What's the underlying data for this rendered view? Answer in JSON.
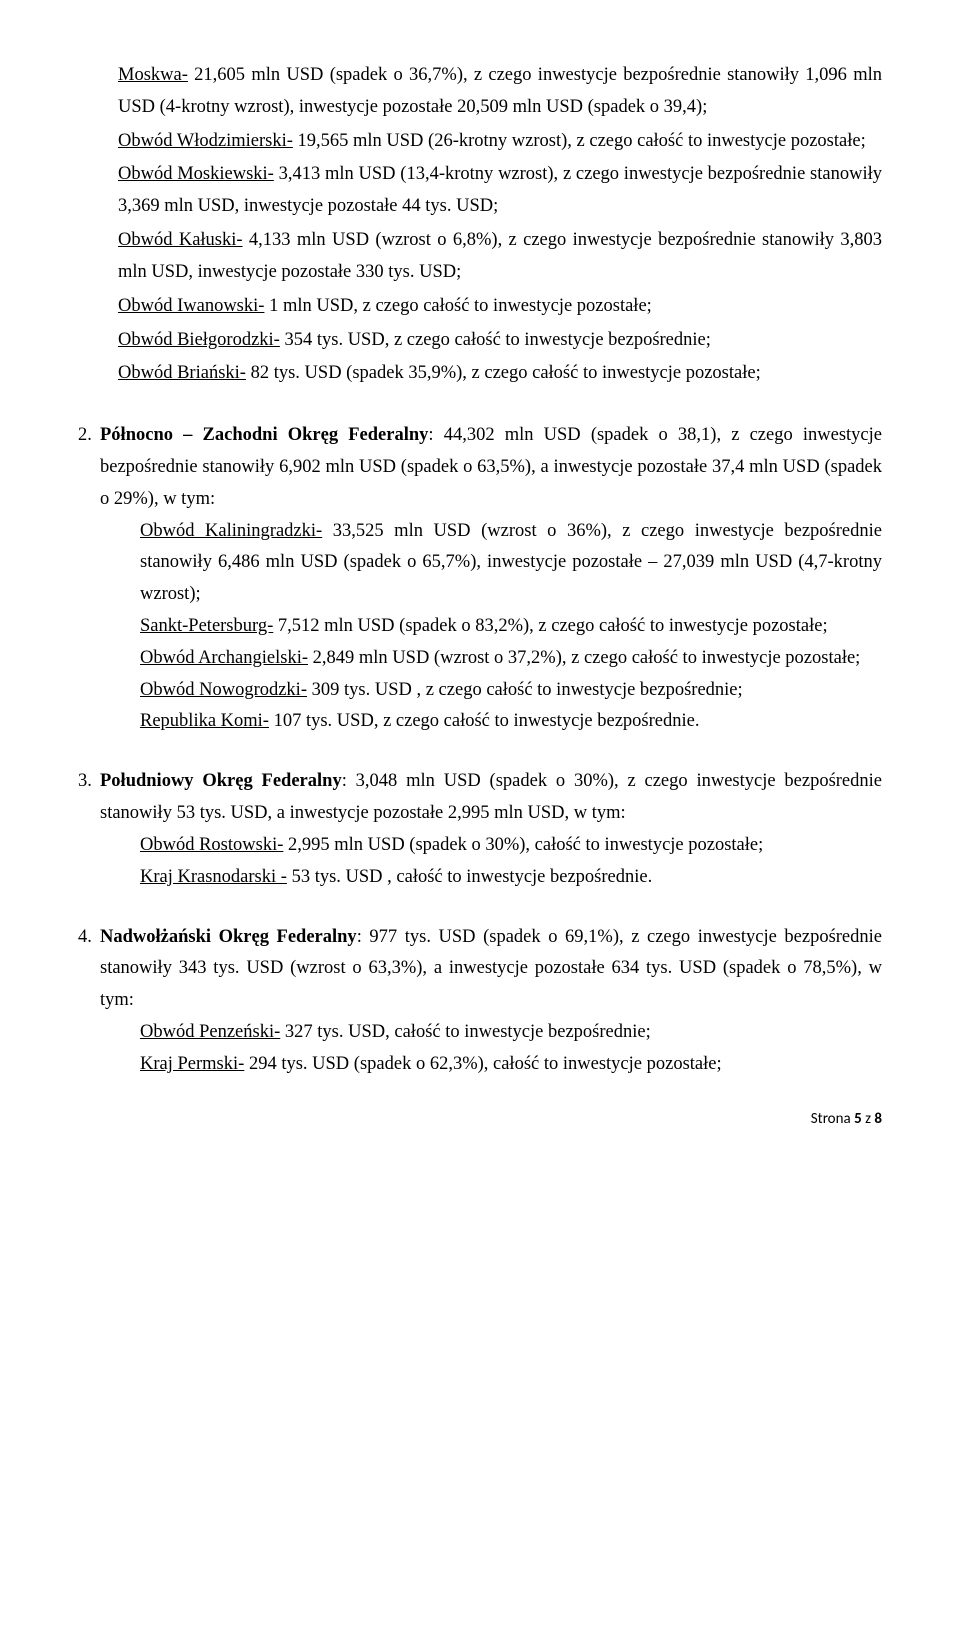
{
  "top": {
    "moskwa": {
      "name": "Moskwa-",
      "rest": " 21,605 mln USD (spadek o 36,7%), z czego inwestycje bezpośrednie stanowiły 1,096 mln USD (4-krotny wzrost), inwestycje pozostałe 20,509 mln USD (spadek o 39,4);"
    },
    "wlodz": {
      "name": "Obwód Włodzimierski-",
      "rest": " 19,565 mln USD (26-krotny wzrost), z czego całość to inwestycje pozostałe;"
    },
    "mosk": {
      "name": "Obwód Moskiewski-",
      "rest": " 3,413 mln USD (13,4-krotny wzrost), z czego inwestycje bezpośrednie stanowiły 3,369 mln USD, inwestycje pozostałe 44 tys. USD;"
    },
    "kaluski": {
      "name": "Obwód Kałuski-",
      "rest": " 4,133 mln USD (wzrost o 6,8%), z czego inwestycje bezpośrednie stanowiły 3,803 mln USD, inwestycje pozostałe 330 tys. USD;"
    },
    "iwan": {
      "name": "Obwód Iwanowski-",
      "rest": " 1 mln USD, z czego całość to inwestycje pozostałe;"
    },
    "bielg": {
      "name": "Obwód Biełgorodzki-",
      "rest": " 354 tys. USD, z czego całość to inwestycje bezpośrednie;"
    },
    "brianski": {
      "name": "Obwód Briański-",
      "rest": " 82 tys. USD (spadek 35,9%),  z czego całość to inwestycje pozostałe;"
    }
  },
  "sec2": {
    "num": "2.",
    "title": "Północno – Zachodni Okręg Federalny",
    "lead": ": 44,302 mln USD (spadek o 38,1), z czego inwestycje bezpośrednie stanowiły 6,902 mln USD (spadek o 63,5%), a inwestycje pozostałe 37,4 mln USD (spadek o 29%), w tym:",
    "kalin": {
      "name": "Obwód Kaliningradzki-",
      "rest": " 33,525 mln USD (wzrost o 36%), z czego inwestycje bezpośrednie stanowiły 6,486 mln USD (spadek o 65,7%), inwestycje pozostałe – 27,039 mln USD (4,7-krotny wzrost);"
    },
    "spb": {
      "name": "Sankt-Petersburg-",
      "rest": " 7,512 mln USD (spadek o 83,2%),  z czego całość to inwestycje pozostałe;"
    },
    "arch": {
      "name": "Obwód Archangielski-",
      "rest": " 2,849 mln USD (wzrost o 37,2%), z czego całość to inwestycje pozostałe;"
    },
    "nowog": {
      "name": "Obwód Nowogrodzki-",
      "rest": " 309 tys. USD , z czego całość to inwestycje bezpośrednie;"
    },
    "komi": {
      "name": "Republika Komi-",
      "rest": " 107 tys. USD, z czego całość to inwestycje bezpośrednie."
    }
  },
  "sec3": {
    "num": "3.",
    "title": "Południowy Okręg Federalny",
    "lead": ": 3,048 mln USD (spadek o 30%), z czego inwestycje bezpośrednie stanowiły 53 tys. USD, a inwestycje pozostałe 2,995 mln USD, w tym:",
    "rost": {
      "name": "Obwód Rostowski-",
      "rest": "  2,995 mln USD (spadek o 30%), całość to inwestycje pozostałe;"
    },
    "krasn": {
      "name": "Kraj Krasnodarski -",
      "rest": " 53 tys. USD , całość to inwestycje bezpośrednie."
    }
  },
  "sec4": {
    "num": "4.",
    "title": "Nadwołżański Okręg Federalny",
    "lead": ": 977 tys. USD (spadek o 69,1%), z czego inwestycje bezpośrednie stanowiły 343 tys. USD (wzrost o 63,3%), a inwestycje pozostałe 634 tys. USD (spadek o 78,5%), w tym:",
    "penz": {
      "name": "Obwód Penzeński-",
      "rest": " 327 tys. USD, całość to inwestycje bezpośrednie;"
    },
    "perm": {
      "name": "Kraj Permski-",
      "rest": " 294 tys. USD (spadek o 62,3%), całość to inwestycje pozostałe;"
    }
  },
  "footer": {
    "label": "Strona ",
    "page": "5",
    "sep": " z ",
    "total": "8"
  }
}
